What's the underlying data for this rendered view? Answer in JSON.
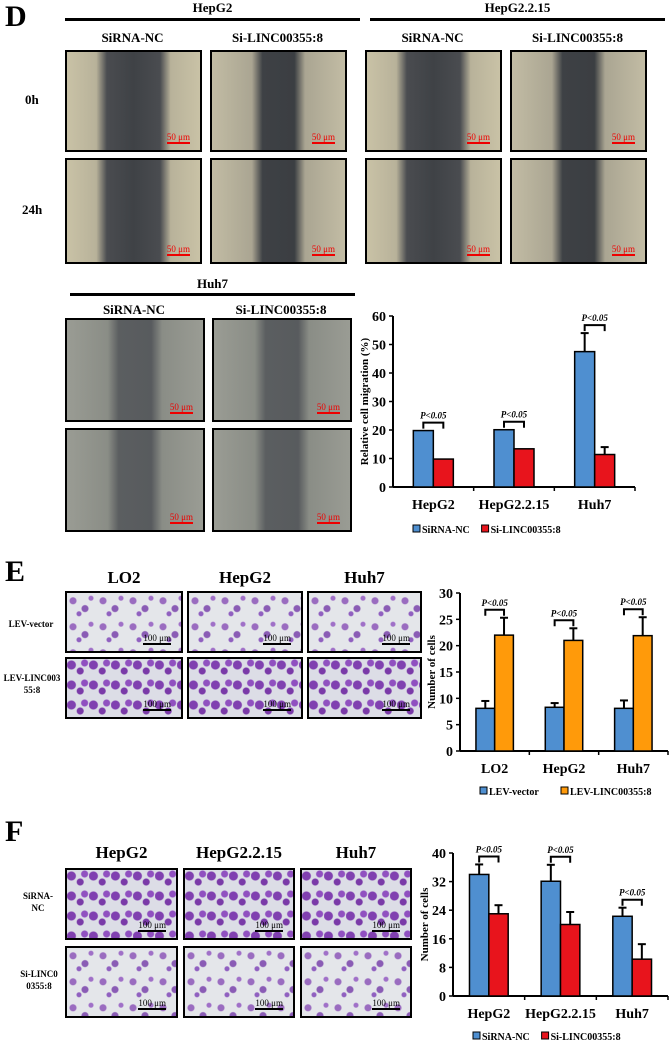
{
  "panelD": {
    "letter": "D",
    "groups": [
      "HepG2",
      "HepG2.2.15"
    ],
    "conditions": [
      "SiRNA-NC",
      "Si-LINC00355:8"
    ],
    "rows": [
      "0h",
      "24h"
    ],
    "huh7": "Huh7",
    "scale": "50 μm"
  },
  "panelE": {
    "letter": "E",
    "columns": [
      "LO2",
      "HepG2",
      "Huh7"
    ],
    "rows": [
      "LEV-vector",
      "LEV-LINC00355:8"
    ],
    "scale": "100 μm"
  },
  "panelF": {
    "letter": "F",
    "columns": [
      "HepG2",
      "HepG2.2.15",
      "Huh7"
    ],
    "rows": [
      "SiRNA-NC",
      "Si-LINC0 0355:8"
    ],
    "scale": "100 μm"
  },
  "chart_data": [
    {
      "type": "bar",
      "ylabel": "Relative cell migration (%)",
      "categories": [
        "HepG2",
        "HepG2.2.15",
        "Huh7"
      ],
      "ylim": [
        0,
        60
      ],
      "yticks": [
        0,
        10,
        20,
        30,
        40,
        50,
        60
      ],
      "series": [
        {
          "name": "SiRNA-NC",
          "color": "#4f8fd0",
          "values": [
            19.8,
            20.1,
            47.5
          ],
          "errors": [
            0,
            0,
            6.5
          ]
        },
        {
          "name": "Si-LINC00355:8",
          "color": "#e8141c",
          "values": [
            9.8,
            13.4,
            11.4
          ],
          "errors": [
            0,
            0,
            2.6
          ]
        }
      ],
      "annotations": [
        "P<0.05",
        "P<0.05",
        "P<0.05"
      ],
      "legend": "bottom"
    },
    {
      "type": "bar",
      "ylabel": "Number of cells",
      "categories": [
        "LO2",
        "HepG2",
        "Huh7"
      ],
      "ylim": [
        0,
        30
      ],
      "yticks": [
        0,
        5,
        10,
        15,
        20,
        25,
        30
      ],
      "series": [
        {
          "name": "LEV-vector",
          "color": "#4f8fd0",
          "values": [
            8.1,
            8.3,
            8.1
          ],
          "errors": [
            1.4,
            0.8,
            1.5
          ]
        },
        {
          "name": "LEV-LINC00355:8",
          "color": "#ff9a0a",
          "values": [
            22,
            21,
            21.9
          ],
          "errors": [
            3.3,
            2.3,
            3.5
          ]
        }
      ],
      "annotations": [
        "P<0.05",
        "P<0.05",
        "P<0.05"
      ],
      "legend": "bottom"
    },
    {
      "type": "bar",
      "ylabel": "Number of cells",
      "categories": [
        "HepG2",
        "HepG2.2.15",
        "Huh7"
      ],
      "ylim": [
        0,
        40
      ],
      "yticks": [
        0,
        8,
        16,
        24,
        32,
        40
      ],
      "series": [
        {
          "name": "SiRNA-NC",
          "color": "#4f8fd0",
          "values": [
            34,
            32.1,
            22.3
          ],
          "errors": [
            2.8,
            4.6,
            2.4
          ]
        },
        {
          "name": "Si-LINC00355:8",
          "color": "#e8141c",
          "values": [
            23,
            20,
            10.3
          ],
          "errors": [
            2.4,
            3.5,
            4.2
          ]
        }
      ],
      "annotations": [
        "P<0.05",
        "P<0.05",
        "P<0.05"
      ],
      "legend": "bottom"
    }
  ]
}
